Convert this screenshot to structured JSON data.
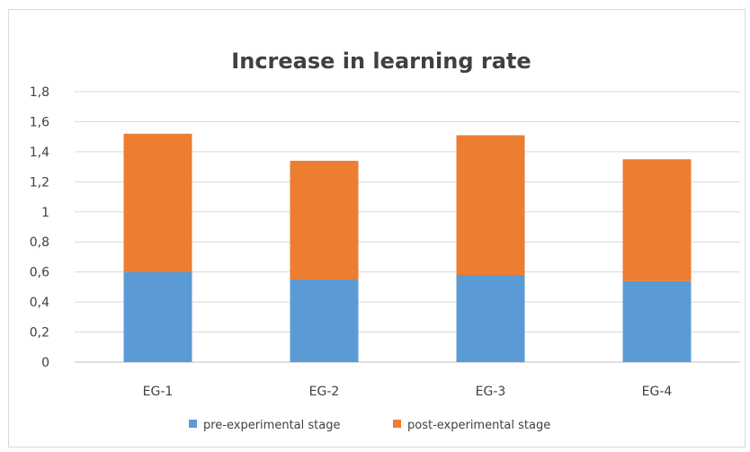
{
  "chart_data": {
    "type": "bar",
    "stacked": true,
    "title": "Increase in learning rate",
    "xlabel": "",
    "ylabel": "",
    "categories": [
      "EG-1",
      "EG-2",
      "EG-3",
      "EG-4"
    ],
    "series": [
      {
        "name": "pre-experimental stage",
        "values": [
          0.6,
          0.55,
          0.58,
          0.54
        ],
        "color": "#5b9bd5"
      },
      {
        "name": "post-experimental stage",
        "values": [
          0.92,
          0.79,
          0.93,
          0.81
        ],
        "color": "#ed7d31"
      }
    ],
    "ylim": [
      0,
      1.8
    ],
    "yticks": [
      "0",
      "0,2",
      "0,4",
      "0,6",
      "0,8",
      "1",
      "1,2",
      "1,4",
      "1,6",
      "1,8"
    ],
    "grid": true,
    "legend_position": "bottom"
  }
}
